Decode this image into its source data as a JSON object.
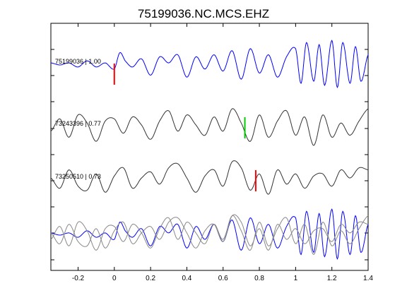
{
  "chart_data": {
    "type": "line",
    "title": "75199036.NC.MCS.EHZ",
    "xlabel": "",
    "ylabel": "",
    "xlim": [
      -0.35,
      1.4
    ],
    "x_ticks": [
      "-0.2",
      "0",
      "0.2",
      "0.4",
      "0.6",
      "0.8",
      "1",
      "1.2",
      "1.4"
    ],
    "x_tick_values": [
      -0.2,
      0,
      0.2,
      0.4,
      0.6,
      0.8,
      1.0,
      1.2,
      1.4
    ],
    "grid": false,
    "colors": {
      "primary": "#0000ff",
      "other": "#333333",
      "overlay_other": "#888888",
      "pick_red": "#ff0000",
      "pick_green": "#00cc00"
    },
    "traces": [
      {
        "label": "75199036 | 1.00",
        "color": "#0000ff",
        "pick_time": 0.0,
        "pick_color": "#ff0000",
        "x": [
          -0.35,
          -0.3,
          -0.25,
          -0.2,
          -0.15,
          -0.1,
          -0.05,
          0,
          0.03,
          0.06,
          0.1,
          0.15,
          0.2,
          0.25,
          0.3,
          0.35,
          0.4,
          0.45,
          0.5,
          0.55,
          0.6,
          0.65,
          0.7,
          0.75,
          0.8,
          0.85,
          0.9,
          0.95,
          1.0,
          1.03,
          1.06,
          1.1,
          1.13,
          1.16,
          1.2,
          1.23,
          1.26,
          1.3,
          1.33,
          1.36,
          1.4
        ],
        "values": [
          0.1,
          0.0,
          0.1,
          -0.1,
          0.2,
          -0.1,
          0.1,
          -0.2,
          0.6,
          0.2,
          -0.1,
          0.3,
          -0.5,
          0.4,
          0.1,
          0.5,
          -0.6,
          0.4,
          -0.2,
          0.5,
          -0.3,
          0.7,
          -0.7,
          0.8,
          -0.4,
          0.5,
          -0.6,
          0.4,
          0.8,
          -0.9,
          1.1,
          -0.8,
          1.0,
          -1.0,
          1.2,
          -1.1,
          1.1,
          -0.9,
          0.9,
          -0.8,
          0.5
        ]
      },
      {
        "label": "73243396 | 0.77",
        "color": "#333333",
        "pick_time": 0.72,
        "pick_color": "#00cc00",
        "x": [
          -0.35,
          -0.3,
          -0.25,
          -0.2,
          -0.15,
          -0.1,
          -0.05,
          0,
          0.05,
          0.1,
          0.15,
          0.2,
          0.25,
          0.3,
          0.35,
          0.4,
          0.45,
          0.5,
          0.55,
          0.6,
          0.65,
          0.7,
          0.75,
          0.8,
          0.85,
          0.9,
          0.95,
          1.0,
          1.05,
          1.1,
          1.15,
          1.2,
          1.25,
          1.3,
          1.35,
          1.4
        ],
        "values": [
          -0.2,
          0.4,
          -0.5,
          0.6,
          0.2,
          -0.7,
          0.3,
          0.4,
          -0.3,
          0.5,
          0.1,
          -0.6,
          0.3,
          0.8,
          -0.2,
          0.6,
          0.1,
          -0.4,
          0.5,
          -0.2,
          0.9,
          0.2,
          -0.7,
          0.6,
          -0.5,
          0.3,
          0.8,
          -0.4,
          0.5,
          -0.9,
          0.6,
          -0.5,
          0.2,
          -0.4,
          0.3,
          0.9
        ]
      },
      {
        "label": "73250510 | 0.73",
        "color": "#333333",
        "pick_time": 0.78,
        "pick_color": "#ff0000",
        "x": [
          -0.35,
          -0.3,
          -0.25,
          -0.2,
          -0.15,
          -0.1,
          -0.05,
          0,
          0.05,
          0.1,
          0.15,
          0.2,
          0.25,
          0.3,
          0.35,
          0.4,
          0.45,
          0.5,
          0.55,
          0.6,
          0.65,
          0.7,
          0.75,
          0.8,
          0.85,
          0.9,
          0.95,
          1.0,
          1.05,
          1.1,
          1.15,
          1.2,
          1.25,
          1.3,
          1.35,
          1.4
        ],
        "values": [
          0.1,
          -0.4,
          0.5,
          -0.3,
          -0.5,
          0.3,
          -0.6,
          0.2,
          0.6,
          -0.4,
          0.1,
          0.4,
          -0.2,
          0.6,
          0.8,
          0.1,
          -0.6,
          0.2,
          0.5,
          -0.3,
          0.9,
          0.6,
          -0.5,
          0.3,
          -0.7,
          0.5,
          -0.2,
          0.3,
          -0.4,
          0.2,
          0.3,
          -0.3,
          0.5,
          0.1,
          0.6,
          0.5
        ]
      }
    ],
    "overlay": {
      "series": [
        {
          "source": "75199036 | 1.00",
          "color": "#0000ff"
        },
        {
          "source": "73243396 | 0.77",
          "color": "#888888"
        },
        {
          "source": "73250510 | 0.73",
          "color": "#888888"
        }
      ]
    }
  }
}
